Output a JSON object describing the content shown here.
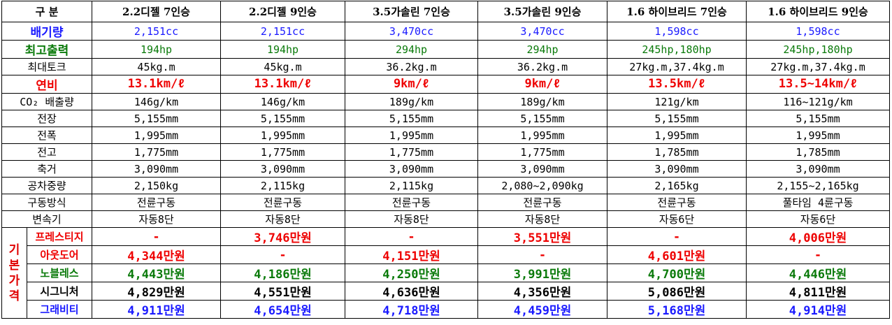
{
  "table": {
    "header": [
      "구 분",
      "2.2디젤 7인승",
      "2.2디젤 9인승",
      "3.5가솔린 7인승",
      "3.5가솔린 9인승",
      "1.6 하이브리드 7인승",
      "1.6 하이브리드 9인승"
    ],
    "rows": [
      {
        "label": "배기량",
        "values": [
          "2,151cc",
          "2,151cc",
          "3,470cc",
          "3,470cc",
          "1,598cc",
          "1,598cc"
        ]
      },
      {
        "label": "최고출력",
        "values": [
          "194hp",
          "194hp",
          "294hp",
          "294hp",
          "245hp,180hp",
          "245hp,180hp"
        ]
      },
      {
        "label": "최대토크",
        "values": [
          "45kg.m",
          "45kg.m",
          "36.2kg.m",
          "36.2kg.m",
          "27kg.m,37.4kg.m",
          "27kg.m,37.4kg.m"
        ]
      },
      {
        "label": "연비",
        "values": [
          "13.1km/ℓ",
          "13.1km/ℓ",
          "9km/ℓ",
          "9km/ℓ",
          "13.5km/ℓ",
          "13.5~14km/ℓ"
        ]
      },
      {
        "label": "CO₂ 배출량",
        "values": [
          "146g/km",
          "146g/km",
          "189g/km",
          "189g/km",
          "121g/km",
          "116~121g/km"
        ]
      },
      {
        "label": "전장",
        "values": [
          "5,155mm",
          "5,155mm",
          "5,155mm",
          "5,155mm",
          "5,155mm",
          "5,155mm"
        ]
      },
      {
        "label": "전폭",
        "values": [
          "1,995mm",
          "1,995mm",
          "1,995mm",
          "1,995mm",
          "1,995mm",
          "1,995mm"
        ]
      },
      {
        "label": "전고",
        "values": [
          "1,775mm",
          "1,775mm",
          "1,775mm",
          "1,775mm",
          "1,785mm",
          "1,785mm"
        ]
      },
      {
        "label": "축거",
        "values": [
          "3,090mm",
          "3,090mm",
          "3,090mm",
          "3,090mm",
          "3,090mm",
          "3,090mm"
        ]
      },
      {
        "label": "공차중량",
        "values": [
          "2,150kg",
          "2,115kg",
          "2,115kg",
          "2,080~2,090kg",
          "2,165kg",
          "2,155~2,165kg"
        ]
      },
      {
        "label": "구동방식",
        "values": [
          "전륜구동",
          "전륜구동",
          "전륜구동",
          "전륜구동",
          "전륜구동",
          "풀타임 4륜구동"
        ]
      },
      {
        "label": "변속기",
        "values": [
          "자동8단",
          "자동8단",
          "자동8단",
          "자동8단",
          "자동6단",
          "자동6단"
        ]
      }
    ],
    "price_group": "기본가격",
    "price_rows": [
      {
        "label": "프레스티지",
        "values": [
          "-",
          "3,746만원",
          "-",
          "3,551만원",
          "-",
          "4,006만원"
        ]
      },
      {
        "label": "아웃도어",
        "values": [
          "4,344만원",
          "-",
          "4,151만원",
          "-",
          "4,601만원",
          "-"
        ]
      },
      {
        "label": "노블레스",
        "values": [
          "4,443만원",
          "4,186만원",
          "4,250만원",
          "3,991만원",
          "4,700만원",
          "4,446만원"
        ]
      },
      {
        "label": "시그니처",
        "values": [
          "4,829만원",
          "4,551만원",
          "4,636만원",
          "4,356만원",
          "5,086만원",
          "4,811만원"
        ]
      },
      {
        "label": "그래비티",
        "values": [
          "4,911만원",
          "4,654만원",
          "4,718만원",
          "4,459만원",
          "5,168만원",
          "4,914만원"
        ]
      }
    ]
  }
}
